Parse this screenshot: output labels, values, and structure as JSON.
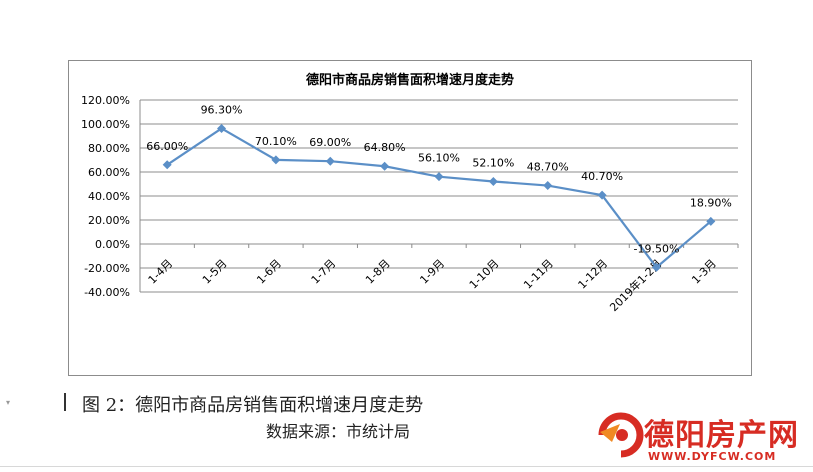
{
  "chart_data": {
    "type": "line",
    "title": "德阳市商品房销售面积增速月度走势",
    "categories": [
      "1-4月",
      "1-5月",
      "1-6月",
      "1-7月",
      "1-8月",
      "1-9月",
      "1-10月",
      "1-11月",
      "1-12月",
      "2019年1-2月",
      "1-3月"
    ],
    "series": [
      {
        "values": [
          66.0,
          96.3,
          70.1,
          69.0,
          64.8,
          56.1,
          52.1,
          48.7,
          40.7,
          -19.5,
          18.9
        ],
        "labels": [
          "66.00%",
          "96.30%",
          "70.10%",
          "69.00%",
          "64.80%",
          "56.10%",
          "52.10%",
          "48.70%",
          "40.70%",
          "-19.50%",
          "18.90%"
        ],
        "color": "#5b8fc7"
      }
    ],
    "ylim": [
      -40,
      120
    ],
    "yticks": [
      "120.00%",
      "100.00%",
      "80.00%",
      "60.00%",
      "40.00%",
      "20.00%",
      "0.00%",
      "-20.00%",
      "-40.00%"
    ],
    "grid": true
  },
  "caption": "图 2：德阳市商品房销售面积增速月度走势",
  "source": "数据来源：市统计局",
  "logo": {
    "name": "德阳房产网",
    "url": "WWW.DYFCW.COM"
  },
  "colors": {
    "line": "#5b8fc7",
    "marker": "#5b8fc7",
    "grid": "#8c8c8c",
    "logo": "#d72c23"
  }
}
